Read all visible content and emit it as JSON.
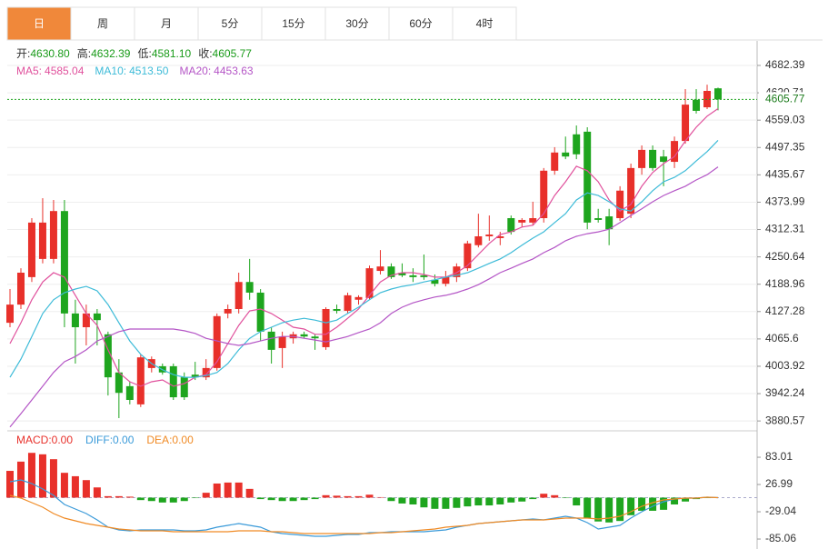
{
  "tabs": [
    "日",
    "周",
    "月",
    "5分",
    "15分",
    "30分",
    "60分",
    "4时"
  ],
  "active_tab": 0,
  "active_color": "#f0883a",
  "chart_data": [
    {
      "type": "candlestick",
      "info": [
        {
          "label": "开:",
          "value": "4630.80"
        },
        {
          "label": "高:",
          "value": "4632.39"
        },
        {
          "label": "低:",
          "value": "4581.10"
        },
        {
          "label": "收:",
          "value": "4605.77"
        }
      ],
      "info_value_color": "#1a9b1a",
      "up_color": "#e8302a",
      "down_color": "#1ea51e",
      "open": [
        4102,
        4143,
        4205,
        4246,
        4246,
        4354,
        4123,
        4092,
        4123,
        4076,
        3990,
        3959,
        3918,
        4000,
        4004,
        4004,
        3979,
        3985,
        3979,
        4000,
        4123,
        4133,
        4194,
        4170,
        4082,
        4045,
        4067,
        4076,
        4071,
        4047,
        4133,
        4129,
        4154,
        4158,
        4219,
        4229,
        4215,
        4209,
        4209,
        4199,
        4190,
        4205,
        4225,
        4277,
        4297,
        4293,
        4338,
        4328,
        4328,
        4338,
        4445,
        4486,
        4527,
        4533,
        4338,
        4342,
        4338,
        4348,
        4451,
        4492,
        4477,
        4465,
        4512,
        4605,
        4588,
        4630.8
      ],
      "high": [
        4178,
        4225,
        4338,
        4383,
        4379,
        4379,
        4154,
        4143,
        4133,
        4082,
        4020,
        3969,
        4031,
        4026,
        4010,
        4010,
        3990,
        4014,
        4020,
        4123,
        4143,
        4215,
        4246,
        4178,
        4092,
        4082,
        4082,
        4082,
        4076,
        4137,
        4143,
        4170,
        4164,
        4231,
        4266,
        4236,
        4236,
        4225,
        4256,
        4211,
        4219,
        4236,
        4287,
        4348,
        4344,
        4307,
        4344,
        4338,
        4375,
        4451,
        4498,
        4522,
        4547,
        4543,
        4359,
        4359,
        4410,
        4461,
        4502,
        4502,
        4492,
        4522,
        4629,
        4629,
        4639,
        4632.39
      ],
      "low": [
        4092,
        4133,
        4194,
        4236,
        4236,
        4092,
        4010,
        4051,
        4051,
        3938,
        3887,
        3918,
        3912,
        3990,
        3985,
        3928,
        3928,
        3973,
        3973,
        3994,
        4112,
        4123,
        4154,
        4061,
        4010,
        4000,
        4055,
        4067,
        4041,
        4041,
        4123,
        4123,
        4143,
        4154,
        4211,
        4201,
        4205,
        4194,
        4199,
        4184,
        4184,
        4194,
        4219,
        4272,
        4287,
        4277,
        4301,
        4318,
        4322,
        4328,
        4436,
        4471,
        4471,
        4313,
        4328,
        4277,
        4332,
        4338,
        4436,
        4445,
        4410,
        4451,
        4506,
        4574,
        4584,
        4581.1
      ],
      "close": [
        4143,
        4215,
        4328,
        4328,
        4354,
        4123,
        4092,
        4123,
        4108,
        3979,
        3944,
        3928,
        4024,
        4020,
        3990,
        3934,
        3934,
        3979,
        4000,
        4117,
        4133,
        4194,
        4170,
        4082,
        4041,
        4071,
        4076,
        4071,
        4067,
        4133,
        4129,
        4164,
        4160,
        4225,
        4229,
        4205,
        4209,
        4205,
        4205,
        4190,
        4205,
        4229,
        4281,
        4297,
        4301,
        4297,
        4307,
        4334,
        4338,
        4445,
        4486,
        4477,
        4482,
        4328,
        4334,
        4313,
        4400,
        4451,
        4492,
        4451,
        4465,
        4512,
        4594,
        4580,
        4625,
        4605.77
      ],
      "series": [
        {
          "name": "MA5:",
          "value_label": "4585.04",
          "color": "#e0509c",
          "values": [
            4055,
            4102,
            4154,
            4194,
            4215,
            4205,
            4164,
            4123,
            4096,
            4041,
            3990,
            3969,
            3959,
            3969,
            3973,
            3959,
            3965,
            3979,
            3985,
            4014,
            4055,
            4096,
            4129,
            4133,
            4123,
            4108,
            4092,
            4088,
            4076,
            4076,
            4092,
            4112,
            4133,
            4164,
            4194,
            4209,
            4215,
            4215,
            4211,
            4205,
            4205,
            4215,
            4231,
            4256,
            4281,
            4301,
            4307,
            4318,
            4322,
            4348,
            4389,
            4420,
            4455,
            4445,
            4420,
            4379,
            4354,
            4369,
            4410,
            4441,
            4461,
            4477,
            4512,
            4543,
            4568,
            4585.04
          ]
        },
        {
          "name": "MA10:",
          "value_label": "4513.50",
          "color": "#3dbbd8",
          "values": [
            3979,
            4020,
            4071,
            4123,
            4154,
            4170,
            4178,
            4184,
            4174,
            4143,
            4102,
            4061,
            4031,
            4010,
            3996,
            3985,
            3979,
            3979,
            3983,
            3990,
            4010,
            4041,
            4067,
            4082,
            4092,
            4102,
            4108,
            4112,
            4108,
            4102,
            4108,
            4123,
            4137,
            4154,
            4170,
            4178,
            4184,
            4188,
            4194,
            4199,
            4205,
            4209,
            4215,
            4225,
            4236,
            4246,
            4260,
            4277,
            4293,
            4307,
            4328,
            4348,
            4379,
            4395,
            4389,
            4375,
            4359,
            4354,
            4375,
            4400,
            4420,
            4430,
            4445,
            4467,
            4488,
            4513.5
          ]
        },
        {
          "name": "MA20:",
          "value_label": "4453.63",
          "color": "#b455c6",
          "values": [
            3867,
            3897,
            3928,
            3959,
            3990,
            4014,
            4026,
            4041,
            4061,
            4071,
            4082,
            4088,
            4088,
            4088,
            4088,
            4088,
            4084,
            4078,
            4067,
            4061,
            4055,
            4051,
            4055,
            4061,
            4067,
            4071,
            4071,
            4067,
            4063,
            4059,
            4065,
            4071,
            4080,
            4088,
            4102,
            4123,
            4137,
            4147,
            4154,
            4160,
            4164,
            4170,
            4178,
            4188,
            4201,
            4215,
            4225,
            4236,
            4246,
            4260,
            4272,
            4287,
            4297,
            4303,
            4307,
            4313,
            4328,
            4344,
            4359,
            4375,
            4389,
            4400,
            4410,
            4424,
            4436,
            4453.63
          ]
        }
      ],
      "ylim": [
        3858.3,
        4723.4
      ],
      "yticks": [
        4682.39,
        4620.71,
        4559.03,
        4497.35,
        4435.67,
        4373.99,
        4312.31,
        4250.64,
        4188.96,
        4127.28,
        4065.6,
        4003.92,
        3942.24,
        3880.57
      ],
      "grid": true
    },
    {
      "type": "macd",
      "up_color": "#e8302a",
      "down_color": "#1ea51e",
      "series": [
        {
          "name": "MACD:",
          "value_label": "0.00",
          "kind": "bar",
          "color": "#e8302a",
          "values": [
            55,
            74,
            92,
            89,
            79,
            51,
            44,
            36,
            21,
            3,
            3,
            2,
            -5,
            -7,
            -10,
            -10,
            -7,
            -1,
            10,
            29,
            31,
            31,
            18,
            -3,
            -5,
            -7,
            -7,
            -5,
            -3,
            5,
            4,
            3,
            3,
            6,
            1,
            -7,
            -12,
            -14,
            -20,
            -23,
            -23,
            -21,
            -18,
            -16,
            -16,
            -14,
            -10,
            -8,
            -3,
            8,
            5,
            -1,
            -16,
            -42,
            -49,
            -51,
            -48,
            -36,
            -27,
            -27,
            -25,
            -14,
            -8,
            -3,
            -1,
            0
          ]
        },
        {
          "name": "DIFF:",
          "value_label": "0.00",
          "kind": "line",
          "color": "#3a9ad9",
          "values": [
            32.7,
            36.4,
            28.9,
            17.7,
            4.7,
            -14,
            -23.3,
            -32.7,
            -45.7,
            -60.7,
            -66.3,
            -68.1,
            -66.3,
            -66.3,
            -66.3,
            -66.3,
            -68.1,
            -68.1,
            -66.3,
            -60.7,
            -56.9,
            -53.2,
            -56.9,
            -60.7,
            -70,
            -73.7,
            -75.6,
            -77.5,
            -79.3,
            -79.3,
            -77.5,
            -75.6,
            -75.6,
            -71.9,
            -71.9,
            -70,
            -70,
            -70,
            -70,
            -68.1,
            -66.3,
            -60.7,
            -56.9,
            -53.2,
            -51.3,
            -49.5,
            -47.6,
            -45.7,
            -43.9,
            -45.7,
            -42,
            -38.3,
            -42,
            -51.3,
            -64.4,
            -60.7,
            -56.9,
            -42,
            -28.9,
            -17.7,
            -8.4,
            -2.8,
            -0.9,
            -0.9,
            0.9,
            0
          ]
        },
        {
          "name": "DEA:",
          "value_label": "0.00",
          "kind": "line",
          "color": "#f08a24",
          "values": [
            4.7,
            -0.9,
            -10.3,
            -19.6,
            -32.7,
            -42,
            -47.6,
            -53.2,
            -56.9,
            -60.7,
            -64.4,
            -66.3,
            -68.1,
            -68.1,
            -68.1,
            -70,
            -70,
            -70,
            -70,
            -70,
            -70,
            -68.1,
            -68.1,
            -68.1,
            -70,
            -70,
            -71.9,
            -73.7,
            -73.7,
            -73.7,
            -73.7,
            -73.7,
            -73.7,
            -73.7,
            -71.9,
            -71.9,
            -70,
            -68.1,
            -66.3,
            -64.4,
            -60.7,
            -58.8,
            -56.9,
            -53.2,
            -51.3,
            -49.5,
            -47.6,
            -45.7,
            -45.7,
            -45.7,
            -43.9,
            -42,
            -42,
            -42,
            -43.9,
            -42,
            -38.3,
            -28.9,
            -17.7,
            -10.3,
            -4.7,
            -2.8,
            -0.9,
            -0.9,
            0.9,
            0
          ]
        }
      ],
      "ylim": [
        -101.8,
        133.5
      ],
      "yticks": [
        83.01,
        26.99,
        -29.04,
        -85.06
      ],
      "grid": false
    }
  ]
}
